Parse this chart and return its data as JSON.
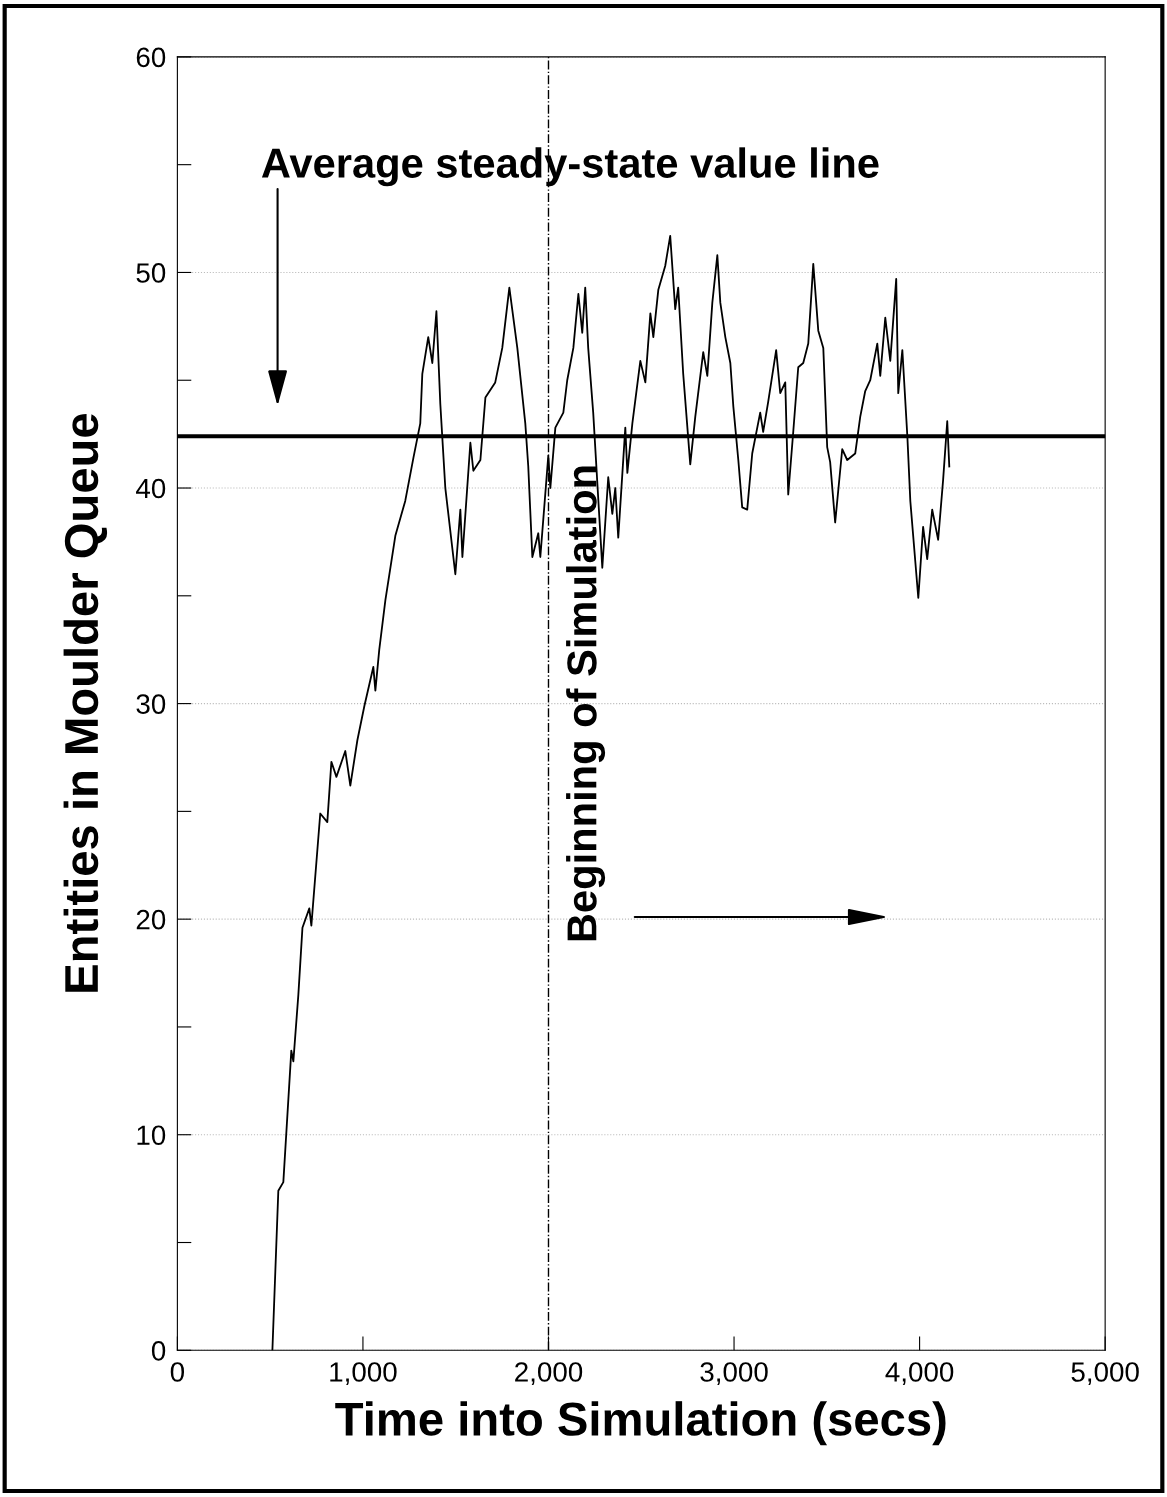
{
  "chart_data": {
    "type": "line",
    "xlabel": "Time into Simulation (secs)",
    "ylabel": "Entities in Moulder Queue",
    "x": [
      512,
      544,
      571,
      614,
      625,
      652,
      674,
      711,
      722,
      770,
      808,
      830,
      857,
      905,
      932,
      970,
      1008,
      1056,
      1067,
      1088,
      1121,
      1175,
      1228,
      1272,
      1309,
      1320,
      1352,
      1374,
      1396,
      1417,
      1444,
      1498,
      1525,
      1536,
      1579,
      1595,
      1633,
      1660,
      1713,
      1751,
      1789,
      1832,
      1875,
      1891,
      1913,
      1945,
      1956,
      1999,
      2010,
      2037,
      2080,
      2101,
      2134,
      2161,
      2182,
      2198,
      2214,
      2241,
      2290,
      2322,
      2344,
      2360,
      2376,
      2414,
      2425,
      2452,
      2495,
      2522,
      2549,
      2565,
      2592,
      2629,
      2656,
      2683,
      2699,
      2726,
      2764,
      2791,
      2834,
      2856,
      2883,
      2910,
      2926,
      2953,
      2980,
      2996,
      3023,
      3044,
      3071,
      3098,
      3141,
      3157,
      3184,
      3227,
      3249,
      3276,
      3292,
      3319,
      3346,
      3373,
      3400,
      3427,
      3454,
      3481,
      3502,
      3518,
      3545,
      3583,
      3610,
      3653,
      3680,
      3707,
      3734,
      3772,
      3788,
      3815,
      3842,
      3874,
      3885,
      3907,
      3934,
      3950,
      3993,
      4019,
      4041,
      4068,
      4100,
      4127,
      4149,
      4160
    ],
    "series": [
      {
        "color": "#000000",
        "values": [
          0,
          7.4,
          7.8,
          13.9,
          13.4,
          16.5,
          19.6,
          20.5,
          19.7,
          24.9,
          24.5,
          27.3,
          26.6,
          27.8,
          26.2,
          28.3,
          29.9,
          31.7,
          30.6,
          32.5,
          34.8,
          37.8,
          39.4,
          41.4,
          43.0,
          45.3,
          47.0,
          45.8,
          48.2,
          43.9,
          40.0,
          36.0,
          39.0,
          36.8,
          42.1,
          40.8,
          41.3,
          44.2,
          44.9,
          46.5,
          49.3,
          46.5,
          43.0,
          41.0,
          36.8,
          37.9,
          36.8,
          41.5,
          40.0,
          42.8,
          43.5,
          45.0,
          46.5,
          49.0,
          47.2,
          49.3,
          46.5,
          43.5,
          36.3,
          40.5,
          38.8,
          40.0,
          37.7,
          42.8,
          40.7,
          43.0,
          45.9,
          44.9,
          48.1,
          47.0,
          49.2,
          50.3,
          51.7,
          48.3,
          49.3,
          45.3,
          41.1,
          43.3,
          46.3,
          45.2,
          48.6,
          50.8,
          48.6,
          47.0,
          45.8,
          43.8,
          41.3,
          39.1,
          39.0,
          41.6,
          43.5,
          42.6,
          44.0,
          46.4,
          44.4,
          44.9,
          39.7,
          42.6,
          45.6,
          45.8,
          46.7,
          50.4,
          47.3,
          46.5,
          41.9,
          41.2,
          38.4,
          41.8,
          41.3,
          41.6,
          43.3,
          44.5,
          45.0,
          46.7,
          45.2,
          47.9,
          45.9,
          49.7,
          44.4,
          46.4,
          42.4,
          39.4,
          34.9,
          38.2,
          36.7,
          39.0,
          37.6,
          40.4,
          43.1,
          41.0
        ]
      }
    ],
    "xlim": [
      0,
      5000
    ],
    "xticks": [
      0,
      {
        "value": 1000,
        "label": "1,000"
      },
      {
        "value": 2000,
        "label": "2,000"
      },
      {
        "value": 3000,
        "label": "3,000"
      },
      {
        "value": 4000,
        "label": "4,000"
      },
      {
        "value": 5000,
        "label": "5,000"
      }
    ],
    "ylim": [
      0,
      60
    ],
    "yticks": [
      0,
      {
        "value": 5,
        "label": null
      },
      10,
      {
        "value": 15,
        "label": null
      },
      20,
      {
        "value": 25,
        "label": null
      },
      30,
      {
        "value": 35,
        "label": null
      },
      40,
      {
        "value": 45,
        "label": null
      },
      50,
      {
        "value": 55,
        "label": null
      },
      60
    ],
    "grid": "y",
    "marker": "none",
    "line_style": "solid",
    "annotations": [
      "Average steady-state value line"
    ],
    "ref_lines": [
      {
        "axis": "y",
        "value": 42.4,
        "color": "#000000",
        "line_style": "solid"
      },
      {
        "axis": "x",
        "value": 2000,
        "label": "Beginning of Simulation",
        "color": "#000000",
        "line_style": "dashdot"
      }
    ]
  }
}
